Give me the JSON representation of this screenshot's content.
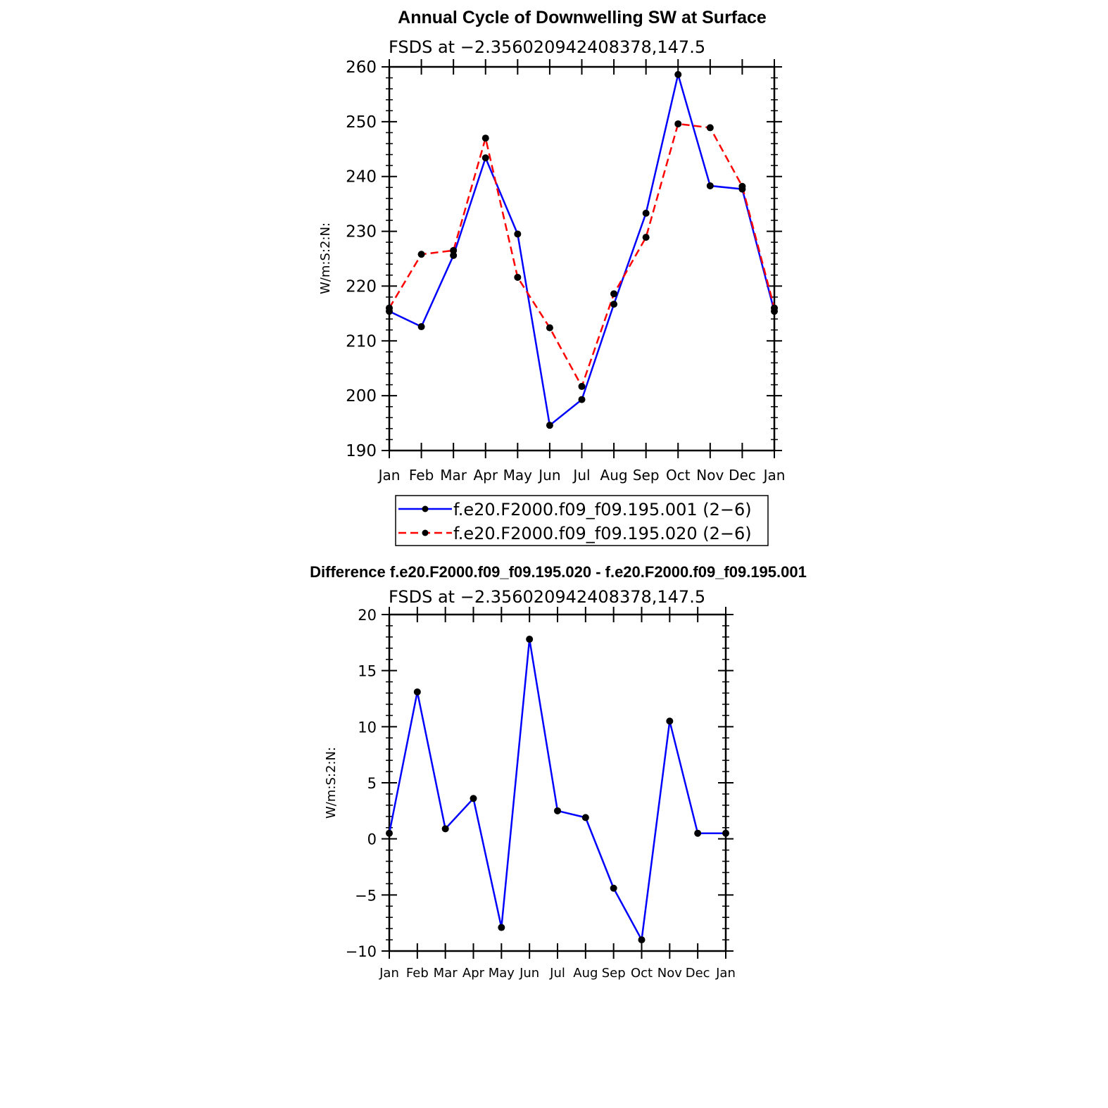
{
  "chart_data": [
    {
      "type": "line",
      "title": "Annual Cycle of Downwelling SW at Surface",
      "subtitle": "FSDS at −2.356020942408378,147.5",
      "ylabel": "W/m:S:2:N:",
      "xlabel": "",
      "categories": [
        "Jan",
        "Feb",
        "Mar",
        "Apr",
        "May",
        "Jun",
        "Jul",
        "Aug",
        "Sep",
        "Oct",
        "Nov",
        "Dec",
        "Jan"
      ],
      "ylim": [
        190,
        260
      ],
      "yticks": [
        "190",
        "200",
        "210",
        "220",
        "230",
        "240",
        "250",
        "260"
      ],
      "legend_position": "below",
      "series": [
        {
          "name": "f.e20.F2000.f09_f09.195.001 (2−6)",
          "color": "#0000ff",
          "dash": "solid",
          "values": [
            215.4,
            212.6,
            225.6,
            243.4,
            229.5,
            194.6,
            199.3,
            216.7,
            233.3,
            258.6,
            238.3,
            237.7,
            215.4
          ]
        },
        {
          "name": "f.e20.F2000.f09_f09.195.020 (2−6)",
          "color": "#ff0000",
          "dash": "dashed",
          "values": [
            216.0,
            225.8,
            226.5,
            247.0,
            221.6,
            212.4,
            201.7,
            218.6,
            228.9,
            249.6,
            248.9,
            238.2,
            216.0
          ]
        }
      ]
    },
    {
      "type": "line",
      "title": "Difference f.e20.F2000.f09_f09.195.020 - f.e20.F2000.f09_f09.195.001",
      "subtitle": "FSDS at −2.356020942408378,147.5",
      "ylabel": "W/m:S:2:N:",
      "xlabel": "",
      "categories": [
        "Jan",
        "Feb",
        "Mar",
        "Apr",
        "May",
        "Jun",
        "Jul",
        "Aug",
        "Sep",
        "Oct",
        "Nov",
        "Dec",
        "Jan"
      ],
      "ylim": [
        -10,
        20
      ],
      "yticks": [
        "−10",
        "−5",
        "0",
        "5",
        "10",
        "15",
        "20"
      ],
      "series": [
        {
          "color": "#0000ff",
          "dash": "solid",
          "values": [
            0.5,
            13.1,
            0.9,
            3.6,
            -7.9,
            17.8,
            2.5,
            1.9,
            -4.4,
            -9.0,
            10.5,
            0.5,
            0.5
          ]
        }
      ]
    }
  ]
}
